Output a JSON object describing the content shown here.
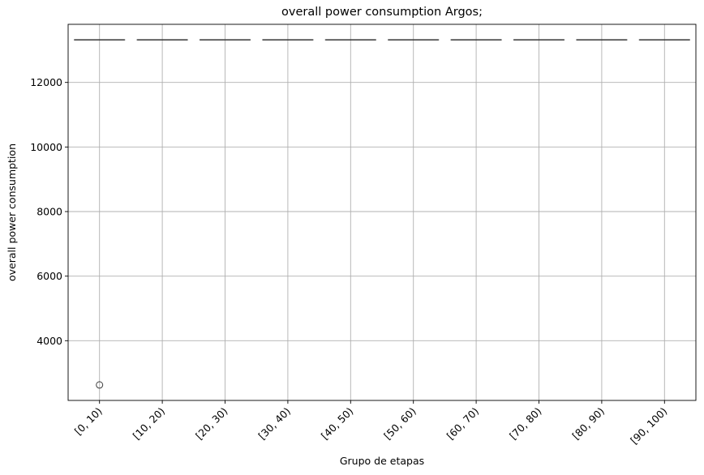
{
  "chart_data": {
    "type": "box",
    "title": "overall power consumption Argos;",
    "xlabel": "Grupo de etapas",
    "ylabel": "overall power consumption",
    "categories": [
      "[0, 10)",
      "[10, 20)",
      "[20, 30)",
      "[30, 40)",
      "[40, 50)",
      "[50, 60)",
      "[60, 70)",
      "[70, 80)",
      "[80, 90)",
      "[90, 100)"
    ],
    "yticks": [
      4000,
      6000,
      8000,
      10000,
      12000
    ],
    "ylim": [
      2150,
      13800
    ],
    "grid": true,
    "boxes": [
      {
        "category": "[0, 10)",
        "median": 13320,
        "q1": 13320,
        "q3": 13320,
        "whisker_low": 13320,
        "whisker_high": 13320,
        "outliers": [
          2630
        ]
      },
      {
        "category": "[10, 20)",
        "median": 13320,
        "q1": 13320,
        "q3": 13320,
        "whisker_low": 13320,
        "whisker_high": 13320,
        "outliers": []
      },
      {
        "category": "[20, 30)",
        "median": 13320,
        "q1": 13320,
        "q3": 13320,
        "whisker_low": 13320,
        "whisker_high": 13320,
        "outliers": []
      },
      {
        "category": "[30, 40)",
        "median": 13320,
        "q1": 13320,
        "q3": 13320,
        "whisker_low": 13320,
        "whisker_high": 13320,
        "outliers": []
      },
      {
        "category": "[40, 50)",
        "median": 13320,
        "q1": 13320,
        "q3": 13320,
        "whisker_low": 13320,
        "whisker_high": 13320,
        "outliers": []
      },
      {
        "category": "[50, 60)",
        "median": 13320,
        "q1": 13320,
        "q3": 13320,
        "whisker_low": 13320,
        "whisker_high": 13320,
        "outliers": []
      },
      {
        "category": "[60, 70)",
        "median": 13320,
        "q1": 13320,
        "q3": 13320,
        "whisker_low": 13320,
        "whisker_high": 13320,
        "outliers": []
      },
      {
        "category": "[70, 80)",
        "median": 13320,
        "q1": 13320,
        "q3": 13320,
        "whisker_low": 13320,
        "whisker_high": 13320,
        "outliers": []
      },
      {
        "category": "[80, 90)",
        "median": 13320,
        "q1": 13320,
        "q3": 13320,
        "whisker_low": 13320,
        "whisker_high": 13320,
        "outliers": []
      },
      {
        "category": "[90, 100)",
        "median": 13320,
        "q1": 13320,
        "q3": 13320,
        "whisker_low": 13320,
        "whisker_high": 13320,
        "outliers": []
      }
    ],
    "colors": {
      "box": "#3d3d3d",
      "grid": "#b0b0b0",
      "axis": "#000000",
      "outlier": "#3d3d3d"
    }
  }
}
